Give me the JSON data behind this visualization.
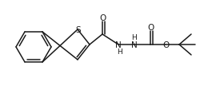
{
  "bg_color": "#ffffff",
  "line_color": "#1a1a1a",
  "line_width": 1.1,
  "figsize": [
    2.8,
    1.13
  ],
  "dpi": 100,
  "xlim": [
    0,
    280
  ],
  "ylim": [
    0,
    113
  ]
}
